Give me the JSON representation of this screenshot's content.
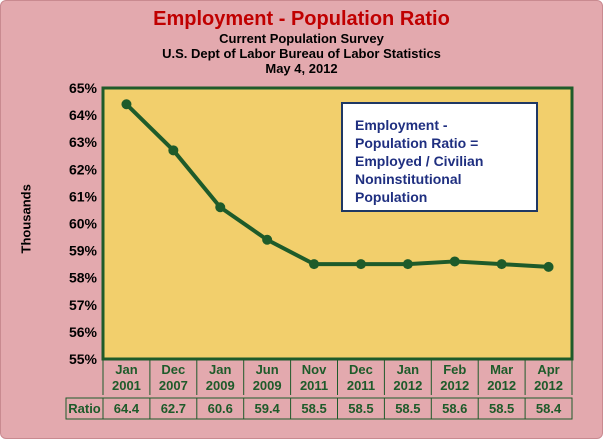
{
  "header": {
    "title": "Employment - Population Ratio",
    "subtitle_lines": [
      "Current Population Survey",
      "U.S. Dept of Labor Bureau of Labor Statistics",
      "May 4, 2012"
    ]
  },
  "annotation": {
    "lines": [
      "Employment -",
      "Population Ratio  =",
      "Employed / Civilian",
      "Noninstitutional",
      "Population"
    ]
  },
  "table_row_label": "Ratio",
  "colors": {
    "background": "#e3a9ae",
    "plot_area": "#f2cf6c",
    "line": "#1e5b2a",
    "axis_text": "#1e5b2a",
    "title": "#c00000",
    "annotation_text": "#1f2f80"
  },
  "chart_data": {
    "type": "line",
    "title": "Employment - Population Ratio",
    "ylabel": "Thousands",
    "xlabel": "",
    "ylim": [
      55,
      65
    ],
    "yticks": [
      "55%",
      "56%",
      "57%",
      "58%",
      "59%",
      "60%",
      "61%",
      "62%",
      "63%",
      "64%",
      "65%"
    ],
    "categories": [
      [
        "Jan",
        "2001"
      ],
      [
        "Dec",
        "2007"
      ],
      [
        "Jan",
        "2009"
      ],
      [
        "Jun",
        "2009"
      ],
      [
        "Nov",
        "2011"
      ],
      [
        "Dec",
        "2011"
      ],
      [
        "Jan",
        "2012"
      ],
      [
        "Feb",
        "2012"
      ],
      [
        "Mar",
        "2012"
      ],
      [
        "Apr",
        "2012"
      ]
    ],
    "values": [
      64.4,
      62.7,
      60.6,
      59.4,
      58.5,
      58.5,
      58.5,
      58.6,
      58.5,
      58.4
    ],
    "value_labels": [
      "64.4",
      "62.7",
      "60.6",
      "59.4",
      "58.5",
      "58.5",
      "58.5",
      "58.6",
      "58.5",
      "58.4"
    ],
    "grid": false,
    "legend": "none"
  }
}
